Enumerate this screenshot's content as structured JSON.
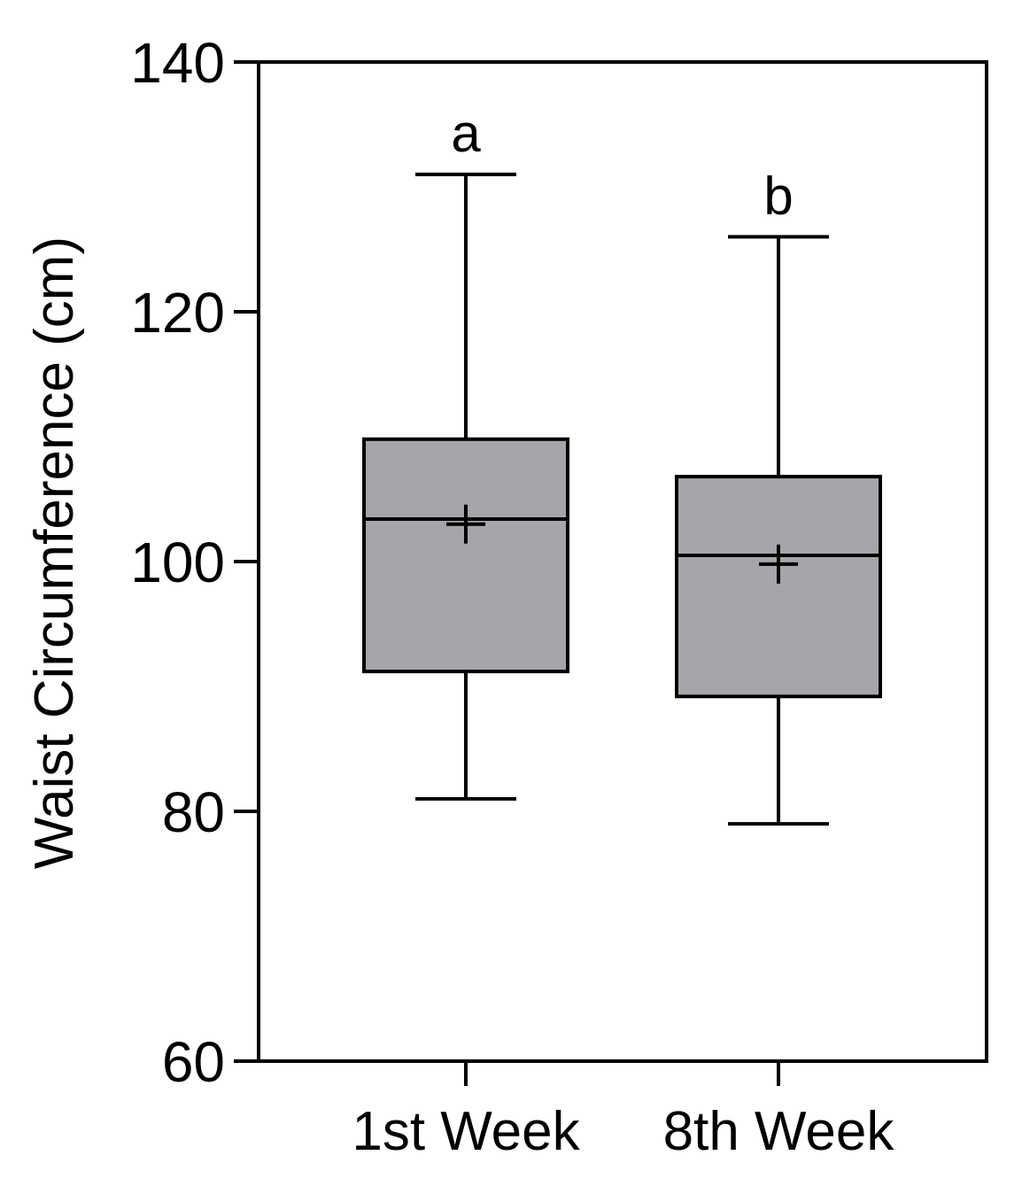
{
  "chart_data": {
    "type": "box",
    "ylabel": "Waist Circumference (cm)",
    "ylim": [
      60,
      140
    ],
    "yticks": [
      60,
      80,
      100,
      120,
      140
    ],
    "categories": [
      "1st Week",
      "8th Week"
    ],
    "boxes": [
      {
        "category": "1st Week",
        "whisker_low": 81,
        "q1": 91.2,
        "median": 103.4,
        "q3": 109.8,
        "whisker_high": 131,
        "mean": 103,
        "significance": "a"
      },
      {
        "category": "8th Week",
        "whisker_low": 79,
        "q1": 89.2,
        "median": 100.5,
        "q3": 106.8,
        "whisker_high": 126,
        "mean": 99.8,
        "significance": "b"
      }
    ],
    "box_color": "#a7a5aa",
    "line_color": "#000000",
    "grid": false,
    "legend": "none"
  }
}
